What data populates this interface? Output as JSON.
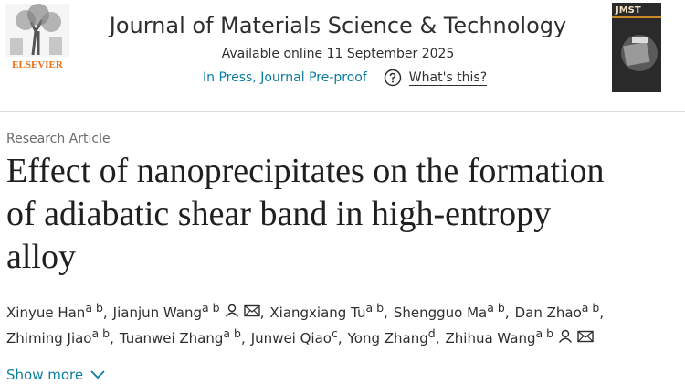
{
  "header": {
    "publisher": "ELSEVIER",
    "journal": "Journal of Materials Science & Technology",
    "availability": "Available online 11 September 2025",
    "status": "In Press, Journal Pre-proof",
    "help_link": "What's this?",
    "cover_label": "JMST"
  },
  "article": {
    "type": "Research Article",
    "title_lines": [
      "Effect of nanoprecipitates on the formation",
      "of adiabatic shear band in high-entropy",
      "alloy"
    ],
    "authors": [
      {
        "name": "Xinyue Han",
        "affiliations": "a b",
        "separator": ",",
        "contact": false
      },
      {
        "name": "Jianjun Wang",
        "affiliations": "a b",
        "separator": ",",
        "contact": true
      },
      {
        "name": "Xiangxiang Tu",
        "affiliations": "a b",
        "separator": ",",
        "contact": false
      },
      {
        "name": "Shengguo Ma",
        "affiliations": "a b",
        "separator": ",",
        "contact": false
      },
      {
        "name": "Dan Zhao",
        "affiliations": "a b",
        "separator": ",",
        "contact": false
      },
      {
        "name": "Zhiming Jiao",
        "affiliations": "a b",
        "separator": ",",
        "contact": false
      },
      {
        "name": "Tuanwei Zhang",
        "affiliations": "a b",
        "separator": ",",
        "contact": false
      },
      {
        "name": "Junwei Qiao",
        "affiliations": "c",
        "separator": ",",
        "contact": false
      },
      {
        "name": "Yong Zhang",
        "affiliations": "d",
        "separator": ",",
        "contact": false
      },
      {
        "name": "Zhihua Wang",
        "affiliations": "a b",
        "separator": null,
        "contact": true
      }
    ],
    "show_more": "Show more"
  }
}
